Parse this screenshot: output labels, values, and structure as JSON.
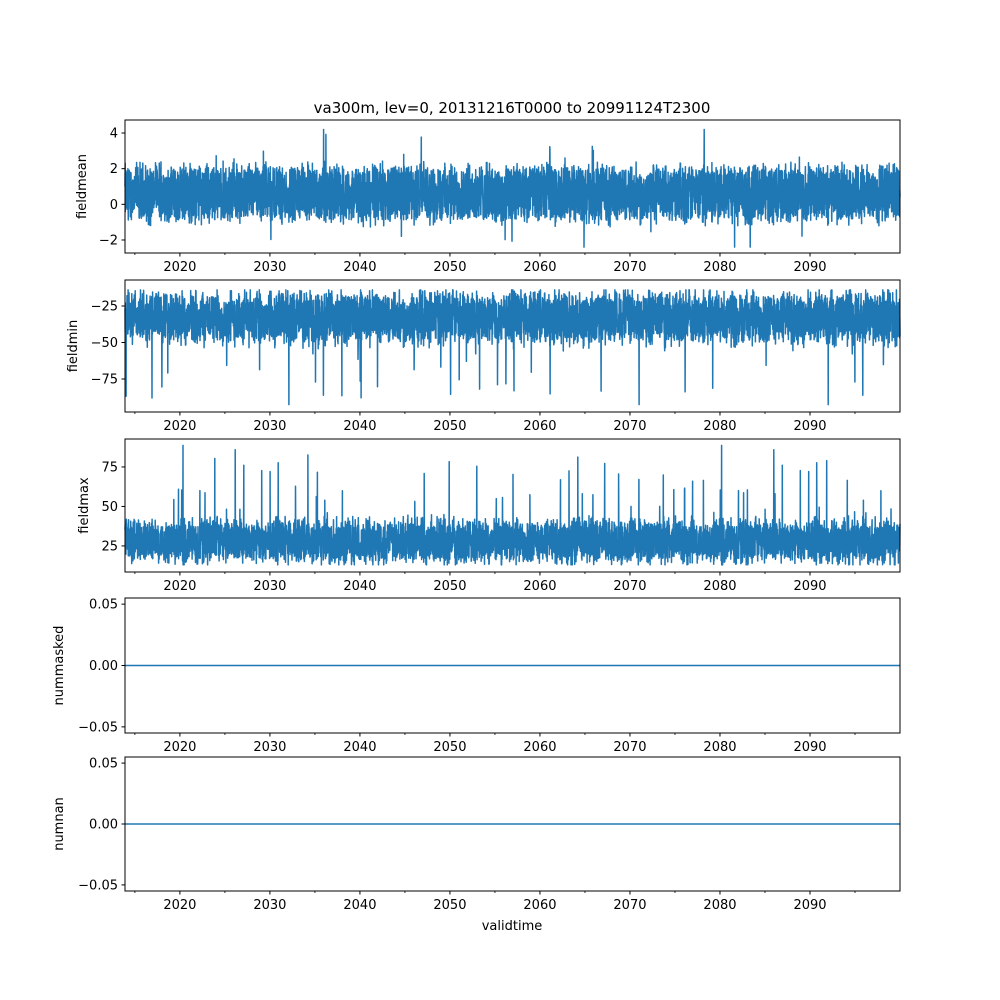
{
  "chart_data": {
    "type": "line",
    "title": "va300m, lev=0, 20131216T0000 to 20991124T2300",
    "xlabel": "validtime",
    "x_range": [
      "2013-12-16",
      "2099-11-24"
    ],
    "xlim_years": [
      2013.9,
      2100.0
    ],
    "x_ticks": [
      2020,
      2030,
      2040,
      2050,
      2060,
      2070,
      2080,
      2090
    ],
    "x_tick_labels": [
      "2020",
      "2030",
      "2040",
      "2050",
      "2060",
      "2070",
      "2080",
      "2090"
    ],
    "x_minor_ticks": [
      2015,
      2025,
      2035,
      2045,
      2055,
      2065,
      2075,
      2085,
      2095
    ],
    "color": "#1f77b4",
    "grid": false,
    "panels": [
      {
        "ylabel": "fieldmean",
        "ylim": [
          -2.73,
          4.73
        ],
        "y_ticks": [
          -2,
          0,
          2,
          4
        ],
        "y_tick_labels": [
          "−2",
          "0",
          "2",
          "4"
        ],
        "series": {
          "kind": "noisy",
          "center": 0.6,
          "low_typical": -1.0,
          "high_typical": 2.5,
          "min": -2.4,
          "max": 4.4
        }
      },
      {
        "ylabel": "fieldmin",
        "ylim": [
          -97.6,
          -7.2
        ],
        "y_ticks": [
          -75,
          -50,
          -25
        ],
        "y_tick_labels": [
          "−75",
          "−50",
          "−25"
        ],
        "series": {
          "kind": "noisy",
          "center": -33,
          "low_typical": -55,
          "high_typical": -17,
          "min": -93,
          "max": -14
        }
      },
      {
        "ylabel": "fieldmax",
        "ylim": [
          8.5,
          92.7
        ],
        "y_ticks": [
          25,
          50,
          75
        ],
        "y_tick_labels": [
          "25",
          "50",
          "75"
        ],
        "series": {
          "kind": "noisy",
          "center": 28,
          "low_typical": 16,
          "high_typical": 45,
          "min": 13,
          "max": 89
        }
      },
      {
        "ylabel": "nummasked",
        "ylim": [
          -0.055,
          0.055
        ],
        "y_ticks": [
          -0.05,
          0.0,
          0.05
        ],
        "y_tick_labels": [
          "−0.05",
          "0.00",
          "0.05"
        ],
        "series": {
          "kind": "constant",
          "value": 0
        }
      },
      {
        "ylabel": "numnan",
        "ylim": [
          -0.055,
          0.055
        ],
        "y_ticks": [
          -0.05,
          0.0,
          0.05
        ],
        "y_tick_labels": [
          "−0.05",
          "0.00",
          "0.05"
        ],
        "series": {
          "kind": "constant",
          "value": 0
        }
      }
    ]
  }
}
